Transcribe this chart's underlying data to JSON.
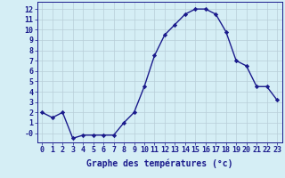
{
  "hours": [
    0,
    1,
    2,
    3,
    4,
    5,
    6,
    7,
    8,
    9,
    10,
    11,
    12,
    13,
    14,
    15,
    16,
    17,
    18,
    19,
    20,
    21,
    22,
    23
  ],
  "temperatures": [
    2.0,
    1.5,
    2.0,
    -0.5,
    -0.2,
    -0.2,
    -0.2,
    -0.2,
    1.0,
    2.0,
    4.5,
    7.5,
    9.5,
    10.5,
    11.5,
    12.0,
    12.0,
    11.5,
    9.8,
    7.0,
    6.5,
    4.5,
    4.5,
    3.2
  ],
  "line_color": "#1a1a8c",
  "marker": "D",
  "marker_size": 2.2,
  "bg_color": "#d5eef5",
  "grid_color": "#b8cdd8",
  "axis_label_color": "#1a1a8c",
  "tick_color": "#1a1a8c",
  "ylabel_ticks": [
    0,
    1,
    2,
    3,
    4,
    5,
    6,
    7,
    8,
    9,
    10,
    11,
    12
  ],
  "ylim": [
    -0.9,
    12.7
  ],
  "xlim": [
    -0.5,
    23.5
  ],
  "xlabel": "Graphe des températures (°c)",
  "xlabel_fontsize": 7.0,
  "tick_fontsize": 6.0,
  "line_width": 1.0
}
